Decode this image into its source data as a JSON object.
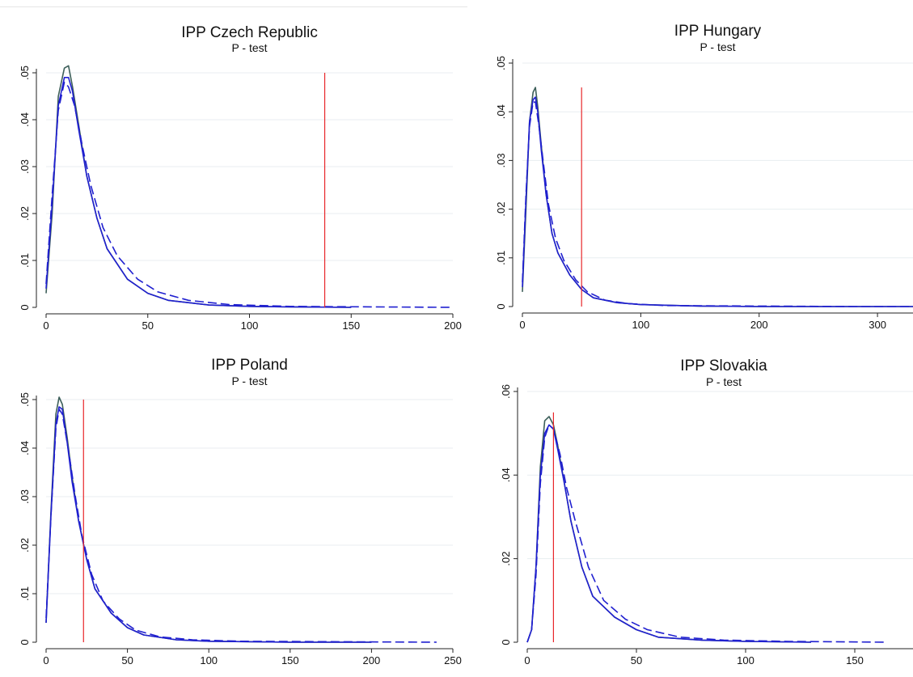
{
  "chart_data": [
    {
      "type": "line",
      "title": "IPP Czech Republic",
      "subtitle": "P - test",
      "xlim": [
        0,
        200
      ],
      "ylim": [
        0,
        0.05
      ],
      "x_ticks": [
        0,
        50,
        100,
        150,
        200
      ],
      "x_tick_labels": [
        "0",
        "50",
        "100",
        "150",
        "200"
      ],
      "y_ticks": [
        0,
        0.01,
        0.02,
        0.03,
        0.04,
        0.05
      ],
      "y_tick_labels": [
        "0",
        ".01",
        ".02",
        ".03",
        ".04",
        ".05"
      ],
      "grid": true,
      "vline": {
        "x": 137,
        "y_top": 0.05,
        "color": "#e8262a"
      },
      "series": [
        {
          "style": "solid",
          "color": "#3d5f5a",
          "x": [
            0,
            3,
            6,
            9,
            11,
            13,
            16,
            20,
            25,
            30,
            40,
            50,
            60,
            80,
            100,
            120,
            150
          ],
          "y": [
            0.003,
            0.02,
            0.045,
            0.051,
            0.0515,
            0.047,
            0.039,
            0.028,
            0.019,
            0.0125,
            0.006,
            0.003,
            0.0015,
            0.0005,
            0.0002,
            0.0001,
            0.0
          ]
        },
        {
          "style": "solid",
          "color": "#2020d0",
          "x": [
            0,
            3,
            6,
            9,
            11,
            13,
            16,
            20,
            25,
            30,
            40,
            50,
            60,
            80,
            100,
            120,
            150
          ],
          "y": [
            0.004,
            0.022,
            0.043,
            0.049,
            0.049,
            0.046,
            0.038,
            0.028,
            0.019,
            0.0125,
            0.006,
            0.003,
            0.0015,
            0.0005,
            0.0002,
            0.0001,
            0.0
          ]
        },
        {
          "style": "dashed",
          "color": "#2020d0",
          "x": [
            0,
            3,
            6,
            9,
            11,
            14,
            18,
            22,
            28,
            35,
            45,
            55,
            70,
            90,
            120,
            160,
            200
          ],
          "y": [
            0.005,
            0.024,
            0.042,
            0.048,
            0.047,
            0.043,
            0.034,
            0.026,
            0.017,
            0.011,
            0.006,
            0.0033,
            0.0015,
            0.0006,
            0.0002,
            0.0001,
            0.0
          ]
        }
      ]
    },
    {
      "type": "line",
      "title": "IPP Hungary",
      "subtitle": "P - test",
      "xlim": [
        0,
        330
      ],
      "ylim": [
        0,
        0.05
      ],
      "x_ticks": [
        0,
        100,
        200,
        300
      ],
      "x_tick_labels": [
        "0",
        "100",
        "200",
        "300"
      ],
      "y_ticks": [
        0,
        0.01,
        0.02,
        0.03,
        0.04,
        0.05
      ],
      "y_tick_labels": [
        "0",
        ".01",
        ".02",
        ".03",
        ".04",
        ".05"
      ],
      "grid": true,
      "vline": {
        "x": 50,
        "y_top": 0.045,
        "color": "#e8262a"
      },
      "series": [
        {
          "style": "solid",
          "color": "#3d5f5a",
          "x": [
            0,
            3,
            6,
            9,
            11,
            13,
            16,
            20,
            25,
            30,
            40,
            50,
            60,
            80,
            100,
            150,
            200,
            330
          ],
          "y": [
            0.003,
            0.02,
            0.038,
            0.044,
            0.045,
            0.041,
            0.033,
            0.023,
            0.015,
            0.011,
            0.0065,
            0.0035,
            0.0018,
            0.0008,
            0.0004,
            0.0001,
            0.0,
            0.0
          ]
        },
        {
          "style": "solid",
          "color": "#2020d0",
          "x": [
            0,
            3,
            6,
            9,
            11,
            13,
            16,
            20,
            25,
            30,
            40,
            50,
            60,
            80,
            100,
            150,
            200,
            330
          ],
          "y": [
            0.004,
            0.022,
            0.038,
            0.0425,
            0.043,
            0.04,
            0.032,
            0.023,
            0.015,
            0.011,
            0.0065,
            0.0035,
            0.0018,
            0.0008,
            0.0004,
            0.0001,
            0.0,
            0.0
          ]
        },
        {
          "style": "dashed",
          "color": "#2020d0",
          "x": [
            0,
            3,
            6,
            9,
            11,
            14,
            18,
            22,
            28,
            35,
            45,
            55,
            70,
            90,
            120,
            200,
            280,
            330
          ],
          "y": [
            0.005,
            0.023,
            0.037,
            0.042,
            0.042,
            0.037,
            0.029,
            0.021,
            0.014,
            0.0095,
            0.0055,
            0.003,
            0.0013,
            0.0006,
            0.0002,
            0.0001,
            0.0,
            0.0
          ]
        }
      ]
    },
    {
      "type": "line",
      "title": "IPP Poland",
      "subtitle": "P - test",
      "xlim": [
        0,
        250
      ],
      "ylim": [
        0,
        0.05
      ],
      "x_ticks": [
        0,
        50,
        100,
        150,
        200,
        250
      ],
      "x_tick_labels": [
        "0",
        "50",
        "100",
        "150",
        "200",
        "250"
      ],
      "y_ticks": [
        0,
        0.01,
        0.02,
        0.03,
        0.04,
        0.05
      ],
      "y_tick_labels": [
        "0",
        ".01",
        ".02",
        ".03",
        ".04",
        ".05"
      ],
      "grid": true,
      "vline": {
        "x": 23,
        "y_top": 0.05,
        "color": "#e8262a"
      },
      "series": [
        {
          "style": "solid",
          "color": "#3d5f5a",
          "x": [
            0,
            3,
            6,
            8,
            10,
            13,
            16,
            20,
            25,
            30,
            40,
            50,
            60,
            80,
            100,
            150,
            200
          ],
          "y": [
            0.004,
            0.027,
            0.047,
            0.0505,
            0.049,
            0.042,
            0.034,
            0.025,
            0.017,
            0.011,
            0.006,
            0.003,
            0.0015,
            0.0005,
            0.0002,
            0.0,
            0.0
          ]
        },
        {
          "style": "solid",
          "color": "#2020d0",
          "x": [
            0,
            3,
            6,
            8,
            10,
            13,
            16,
            20,
            25,
            30,
            40,
            50,
            60,
            80,
            100,
            150,
            200
          ],
          "y": [
            0.004,
            0.026,
            0.045,
            0.0485,
            0.048,
            0.041,
            0.033,
            0.025,
            0.017,
            0.011,
            0.006,
            0.003,
            0.0015,
            0.0005,
            0.0002,
            0.0,
            0.0
          ]
        },
        {
          "style": "dashed",
          "color": "#2020d0",
          "x": [
            0,
            3,
            6,
            8,
            10,
            14,
            18,
            22,
            28,
            35,
            45,
            55,
            70,
            90,
            120,
            180,
            240
          ],
          "y": [
            0.005,
            0.026,
            0.044,
            0.048,
            0.047,
            0.039,
            0.03,
            0.022,
            0.014,
            0.0085,
            0.0048,
            0.0025,
            0.0011,
            0.0005,
            0.0002,
            0.0001,
            0.0
          ]
        }
      ]
    },
    {
      "type": "line",
      "title": "IPP Slovakia",
      "subtitle": "P - test",
      "xlim": [
        0,
        180
      ],
      "ylim": [
        0,
        0.06
      ],
      "x_ticks": [
        0,
        50,
        100,
        150
      ],
      "x_tick_labels": [
        "0",
        "50",
        "100",
        "150"
      ],
      "y_ticks": [
        0,
        0.02,
        0.04,
        0.06
      ],
      "y_tick_labels": [
        "0",
        ".02",
        ".04",
        ".06"
      ],
      "grid": true,
      "vline": {
        "x": 12,
        "y_top": 0.055,
        "color": "#e8262a"
      },
      "series": [
        {
          "style": "solid",
          "color": "#3d5f5a",
          "x": [
            0,
            2,
            4,
            6,
            8,
            10,
            12,
            14,
            17,
            20,
            25,
            30,
            40,
            50,
            60,
            80,
            100,
            130
          ],
          "y": [
            0.0,
            0.003,
            0.018,
            0.042,
            0.053,
            0.054,
            0.052,
            0.047,
            0.038,
            0.029,
            0.018,
            0.011,
            0.006,
            0.003,
            0.0012,
            0.0005,
            0.0002,
            0.0
          ]
        },
        {
          "style": "solid",
          "color": "#2020d0",
          "x": [
            0,
            2,
            4,
            6,
            8,
            10,
            12,
            14,
            17,
            20,
            25,
            30,
            40,
            50,
            60,
            80,
            100,
            130
          ],
          "y": [
            0.0,
            0.003,
            0.018,
            0.04,
            0.05,
            0.052,
            0.051,
            0.046,
            0.038,
            0.029,
            0.018,
            0.011,
            0.006,
            0.003,
            0.0012,
            0.0005,
            0.0002,
            0.0
          ]
        },
        {
          "style": "dashed",
          "color": "#2020d0",
          "x": [
            0,
            2,
            4,
            6,
            8,
            10,
            12,
            15,
            18,
            22,
            28,
            35,
            45,
            55,
            70,
            90,
            120,
            165
          ],
          "y": [
            0.0,
            0.003,
            0.016,
            0.038,
            0.049,
            0.052,
            0.051,
            0.045,
            0.037,
            0.029,
            0.018,
            0.01,
            0.0055,
            0.003,
            0.0012,
            0.0005,
            0.0002,
            0.0
          ]
        }
      ]
    }
  ]
}
